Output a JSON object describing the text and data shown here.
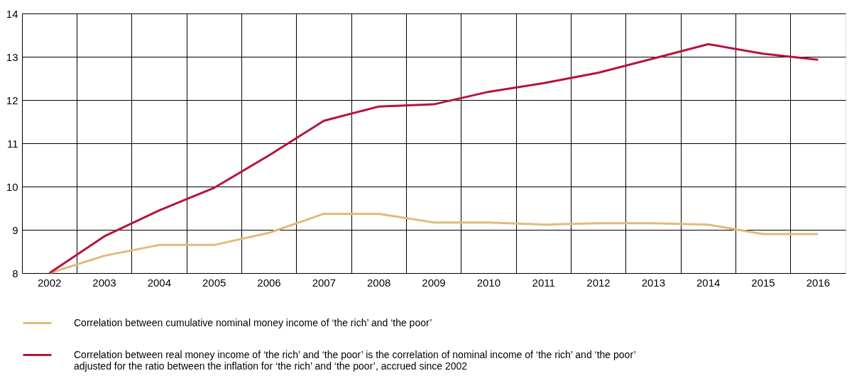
{
  "chart_data": {
    "type": "line",
    "categories": [
      "2002",
      "2003",
      "2004",
      "2005",
      "2006",
      "2007",
      "2008",
      "2009",
      "2010",
      "2011",
      "2012",
      "2013",
      "2014",
      "2015",
      "2016"
    ],
    "series": [
      {
        "name": "Correlation between cumulative nominal money income of ‘the rich’ and ‘the poor’",
        "color": "#e0bb78",
        "values": [
          8.0,
          8.4,
          8.65,
          8.65,
          8.93,
          9.37,
          9.37,
          9.17,
          9.17,
          9.12,
          9.15,
          9.15,
          9.12,
          8.9,
          8.9
        ]
      },
      {
        "name": "Correlation between real money income of ‘the rich’ and ‘the poor’ is the correlation of nominal income of ‘the rich’ and ‘the poor’ adjusted for the ratio between the inflation for ‘the rich’ and ‘the poor’, accrued since 2002",
        "color": "#b5143c",
        "values": [
          8.0,
          8.85,
          9.45,
          9.97,
          10.72,
          11.52,
          11.85,
          11.9,
          12.19,
          12.39,
          12.63,
          12.96,
          13.29,
          13.07,
          12.93
        ]
      }
    ],
    "ylim": [
      8,
      14
    ],
    "yticks": [
      8,
      9,
      10,
      11,
      12,
      13,
      14
    ],
    "grid": true,
    "legend": "bottom",
    "marker": "none",
    "line_style": "solid"
  }
}
